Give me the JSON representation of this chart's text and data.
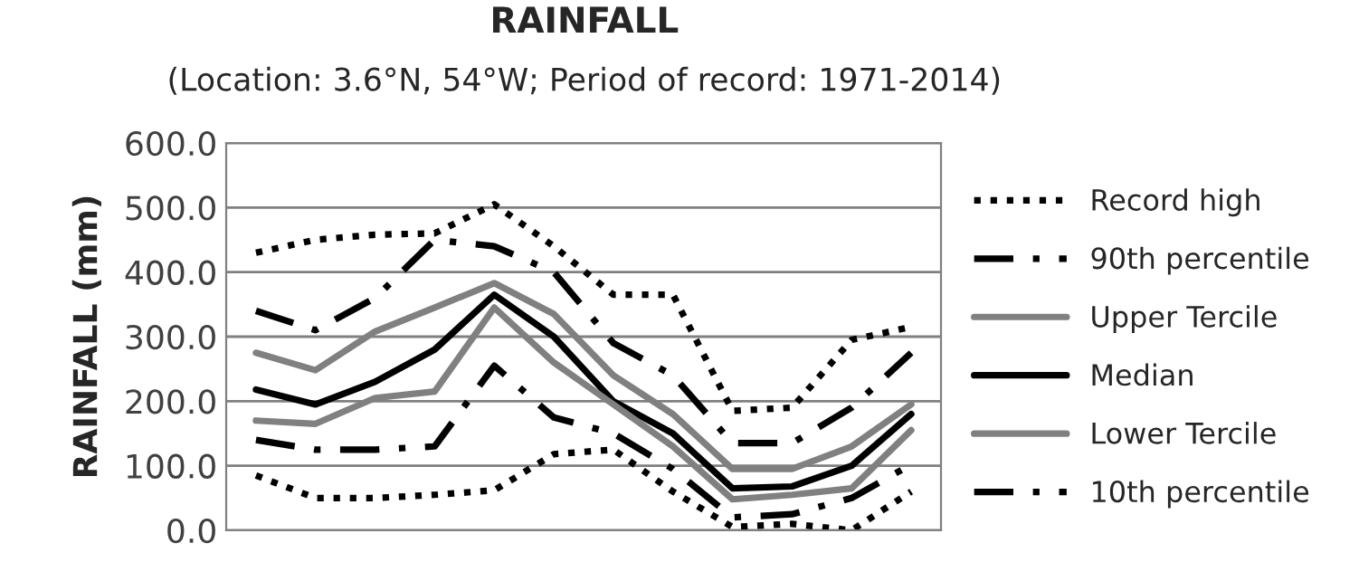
{
  "chart_data": {
    "type": "line",
    "title": "RAINFALL",
    "subtitle": "(Location: 3.6°N, 54°W; Period of record: 1971-2014)",
    "ylabel": "RAINFALL (mm)",
    "categories": [
      null,
      null,
      null,
      null,
      null,
      null,
      null,
      null,
      null,
      null,
      null,
      null
    ],
    "series": [
      {
        "name": "Record high",
        "color": "#000000",
        "line_style": "dotted",
        "values": [
          430,
          450,
          458,
          460,
          505,
          440,
          365,
          365,
          185,
          190,
          295,
          315
        ]
      },
      {
        "name": "90th percentile",
        "color": "#000000",
        "line_style": "dashdot",
        "values": [
          340,
          310,
          360,
          450,
          440,
          400,
          290,
          240,
          135,
          135,
          190,
          275
        ]
      },
      {
        "name": "Upper Tercile",
        "color": "#808080",
        "line_style": "solid",
        "values": [
          275,
          248,
          308,
          345,
          383,
          335,
          240,
          180,
          95,
          95,
          130,
          195
        ]
      },
      {
        "name": "Median",
        "color": "#000000",
        "line_style": "solid",
        "values": [
          218,
          195,
          230,
          280,
          365,
          300,
          200,
          150,
          65,
          68,
          100,
          180
        ]
      },
      {
        "name": "Lower Tercile",
        "color": "#808080",
        "line_style": "solid",
        "values": [
          170,
          165,
          205,
          215,
          345,
          260,
          195,
          130,
          48,
          55,
          65,
          155
        ]
      },
      {
        "name": "10th percentile",
        "color": "#000000",
        "line_style": "dashdot",
        "values": [
          140,
          125,
          125,
          130,
          255,
          175,
          150,
          95,
          20,
          25,
          50,
          102
        ]
      },
      {
        "color": "#000000",
        "line_style": "dotted",
        "values": [
          85,
          50,
          50,
          55,
          62,
          118,
          125,
          60,
          5,
          10,
          0,
          60
        ]
      }
    ],
    "ylim": [
      0,
      600
    ],
    "yticks": [
      {
        "value": 0,
        "label": "0.0"
      },
      {
        "value": 100,
        "label": "100.0"
      },
      {
        "value": 200,
        "label": "200.0"
      },
      {
        "value": 300,
        "label": "300.0"
      },
      {
        "value": 400,
        "label": "400.0"
      },
      {
        "value": 500,
        "label": "500.0"
      },
      {
        "value": 600,
        "label": "600.0"
      }
    ],
    "grid": "y",
    "legend": "right",
    "marker": "none",
    "tick_labels": "y"
  }
}
